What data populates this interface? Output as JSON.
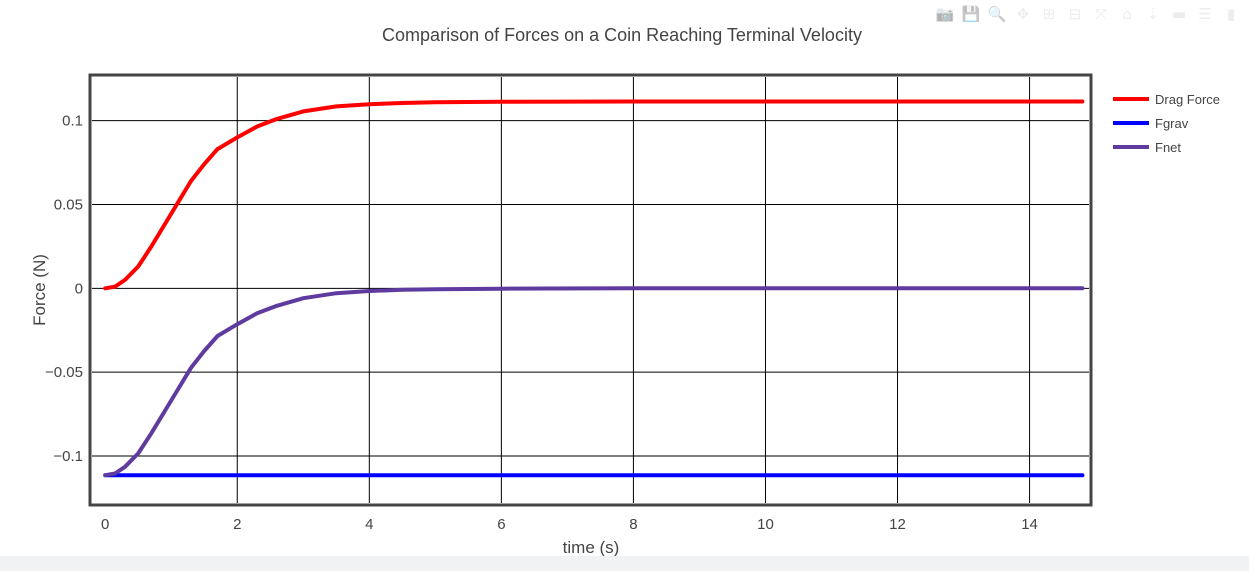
{
  "modebar": [
    {
      "name": "camera-icon",
      "glyph": "📷"
    },
    {
      "name": "save-icon",
      "glyph": "💾"
    },
    {
      "name": "zoom-icon",
      "glyph": "🔍"
    },
    {
      "name": "pan-icon",
      "glyph": "✥"
    },
    {
      "name": "zoom-in-icon",
      "glyph": "⊞"
    },
    {
      "name": "zoom-out-icon",
      "glyph": "⊟"
    },
    {
      "name": "autoscale-icon",
      "glyph": "⤧"
    },
    {
      "name": "home-icon",
      "glyph": "⌂"
    },
    {
      "name": "spike-lines-icon",
      "glyph": "⇣"
    },
    {
      "name": "hover-closest-icon",
      "glyph": "▬"
    },
    {
      "name": "hover-compare-icon",
      "glyph": "☰"
    },
    {
      "name": "plotly-logo-icon",
      "glyph": "▮"
    }
  ],
  "chart_data": {
    "type": "line",
    "title": "Comparison of Forces on a Coin Reaching Terminal Velocity",
    "xlabel": "time (s)",
    "ylabel": "Force (N)",
    "xlim": [
      -0.2,
      14.9
    ],
    "ylim": [
      -0.128,
      0.126
    ],
    "xticks": [
      0,
      2,
      4,
      6,
      8,
      10,
      12,
      14
    ],
    "xtick_labels": [
      "0",
      "2",
      "4",
      "6",
      "8",
      "10",
      "12",
      "14"
    ],
    "yticks": [
      0.1,
      0.05,
      0,
      -0.05,
      -0.1
    ],
    "ytick_labels": [
      "0.1",
      "0.05",
      "0",
      "−0.05",
      "−0.1"
    ],
    "grid": true,
    "legend_position": "top-right",
    "series": [
      {
        "name": "Drag Force",
        "color": "#ff0000",
        "x": [
          0,
          0.15,
          0.3,
          0.5,
          0.7,
          0.9,
          1.1,
          1.3,
          1.5,
          1.7,
          2.0,
          2.3,
          2.6,
          3.0,
          3.5,
          4.0,
          4.5,
          5.0,
          6.0,
          8.0,
          10.0,
          12.0,
          14.8
        ],
        "y": [
          0.0,
          0.001,
          0.005,
          0.013,
          0.025,
          0.038,
          0.051,
          0.064,
          0.074,
          0.083,
          0.09,
          0.0965,
          0.101,
          0.1055,
          0.1085,
          0.1098,
          0.1105,
          0.1109,
          0.1112,
          0.1114,
          0.1114,
          0.1114,
          0.1114
        ]
      },
      {
        "name": "Fgrav",
        "color": "#0000ff",
        "x": [
          0,
          14.8
        ],
        "y": [
          -0.1114,
          -0.1114
        ]
      },
      {
        "name": "Fnet",
        "color": "#5f3a9f",
        "x": [
          0,
          0.15,
          0.3,
          0.5,
          0.7,
          0.9,
          1.1,
          1.3,
          1.5,
          1.7,
          2.0,
          2.3,
          2.6,
          3.0,
          3.5,
          4.0,
          4.5,
          5.0,
          6.0,
          8.0,
          10.0,
          12.0,
          14.8
        ],
        "y": [
          -0.1114,
          -0.1104,
          -0.1064,
          -0.0984,
          -0.0864,
          -0.0734,
          -0.0604,
          -0.0474,
          -0.0374,
          -0.0284,
          -0.0214,
          -0.0149,
          -0.0104,
          -0.0059,
          -0.0029,
          -0.0016,
          -0.0009,
          -0.0005,
          -0.0002,
          0.0,
          0.0,
          0.0,
          0.0
        ]
      }
    ]
  }
}
